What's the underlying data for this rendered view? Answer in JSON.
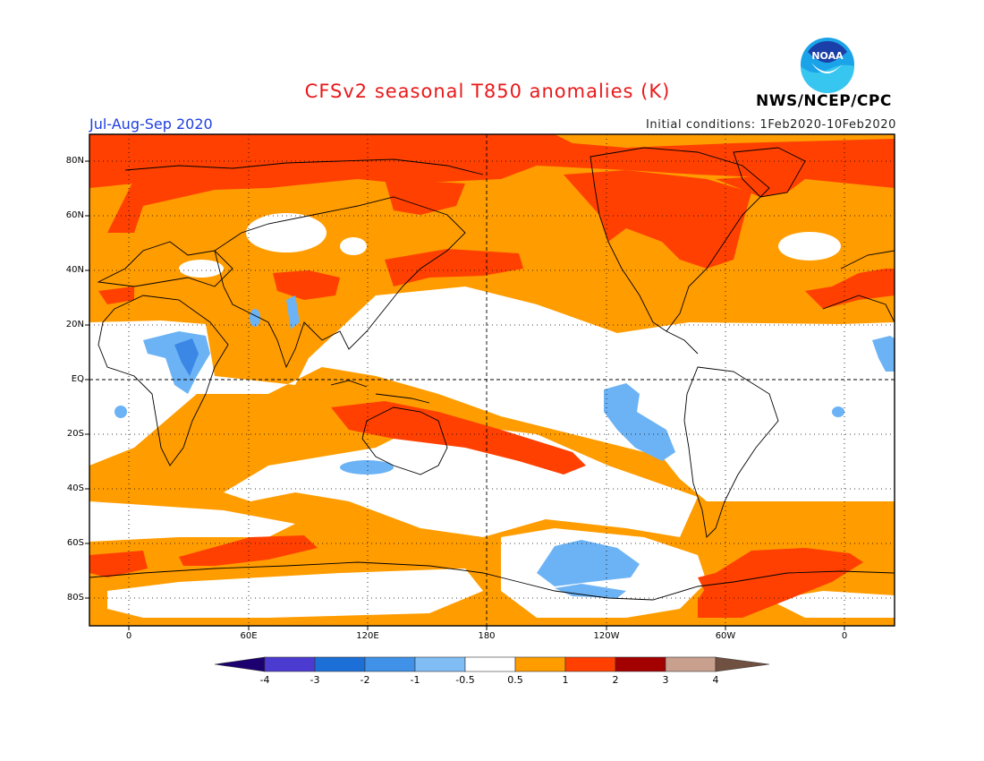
{
  "header": {
    "title": "CFSv2 seasonal T850 anomalies (K)",
    "season": "Jul-Aug-Sep 2020",
    "initial_conditions": "Initial conditions: 1Feb2020-10Feb2020",
    "agency": "NWS/NCEP/CPC",
    "logo_text": "NOAA"
  },
  "map": {
    "lat_labels": [
      "80N",
      "60N",
      "40N",
      "20N",
      "EQ",
      "20S",
      "40S",
      "60S",
      "80S"
    ],
    "lon_labels": [
      "0",
      "60E",
      "120E",
      "180",
      "120W",
      "60W",
      "0"
    ],
    "colors": {
      "strong_positive": "#ff4000",
      "positive": "#ff9c00",
      "neutral": "#ffffff",
      "negative": "#6cb3f5",
      "strong_negative": "#3b87e6",
      "coast": "#000000"
    }
  },
  "colorbar": {
    "labels": [
      "-4",
      "-3",
      "-2",
      "-1",
      "-0.5",
      "0.5",
      "1",
      "2",
      "3",
      "4"
    ],
    "colors": [
      "#1c0070",
      "#4b3bd1",
      "#1c6fd6",
      "#3f92e8",
      "#80bdf4",
      "#ffffff",
      "#ff9c00",
      "#ff4000",
      "#a30000",
      "#c99f8e",
      "#705040"
    ]
  }
}
